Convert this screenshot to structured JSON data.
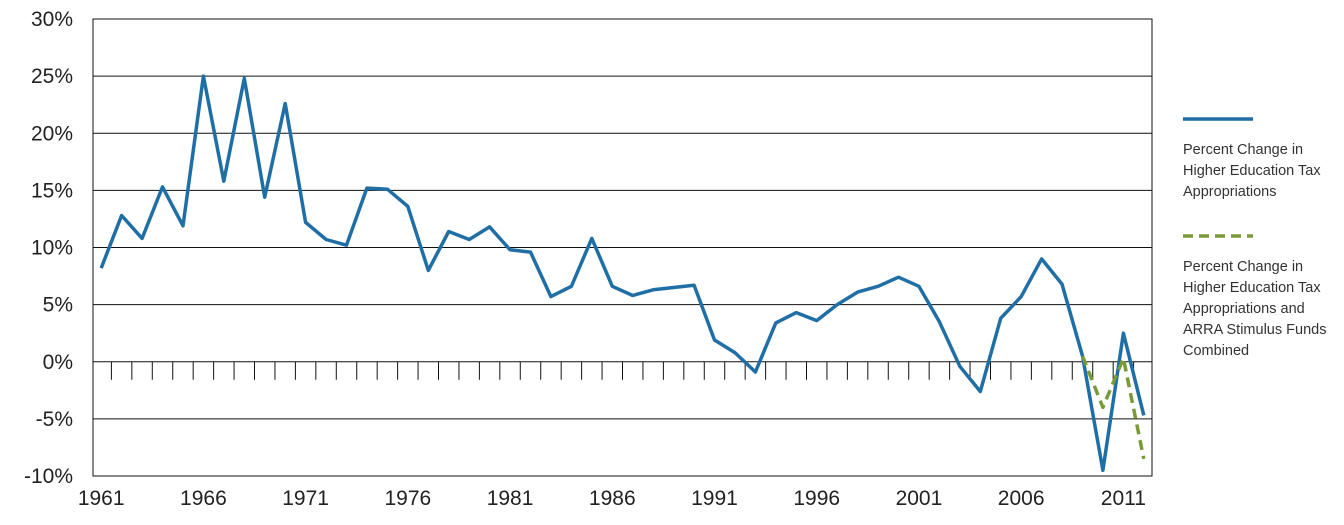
{
  "chart_data": {
    "type": "line",
    "x": [
      1961,
      1962,
      1963,
      1964,
      1965,
      1966,
      1967,
      1968,
      1969,
      1970,
      1971,
      1972,
      1973,
      1974,
      1975,
      1976,
      1977,
      1978,
      1979,
      1980,
      1981,
      1982,
      1983,
      1984,
      1985,
      1986,
      1987,
      1988,
      1989,
      1990,
      1991,
      1992,
      1993,
      1994,
      1995,
      1996,
      1997,
      1998,
      1999,
      2000,
      2001,
      2002,
      2003,
      2004,
      2005,
      2006,
      2007,
      2008,
      2009,
      2010,
      2011,
      2012
    ],
    "series": [
      {
        "name": "Percent Change in Higher Education Tax Appropriations",
        "color": "#1f6fa6",
        "dash": false,
        "values": [
          8.2,
          12.8,
          10.8,
          15.3,
          11.9,
          25.0,
          15.8,
          24.8,
          14.4,
          22.6,
          12.2,
          10.7,
          10.2,
          15.2,
          15.1,
          13.6,
          8.0,
          11.4,
          10.7,
          11.8,
          9.8,
          9.6,
          5.7,
          6.6,
          10.8,
          6.6,
          5.8,
          6.3,
          6.5,
          6.7,
          1.9,
          0.8,
          -0.9,
          3.4,
          4.3,
          3.6,
          5.0,
          6.1,
          6.6,
          7.4,
          6.6,
          3.5,
          -0.4,
          -2.6,
          3.8,
          5.7,
          9.0,
          6.8,
          0.5,
          -9.5,
          2.5,
          -4.7
        ]
      },
      {
        "name": "Percent Change in Higher Education Tax Appropriations and ARRA Stimulus Funds Combined",
        "color": "#7a9a3a",
        "dash": true,
        "values": [
          null,
          null,
          null,
          null,
          null,
          null,
          null,
          null,
          null,
          null,
          null,
          null,
          null,
          null,
          null,
          null,
          null,
          null,
          null,
          null,
          null,
          null,
          null,
          null,
          null,
          null,
          null,
          null,
          null,
          null,
          null,
          null,
          null,
          null,
          null,
          null,
          null,
          null,
          null,
          null,
          null,
          null,
          null,
          null,
          null,
          null,
          null,
          null,
          0.5,
          -4.0,
          0.3,
          -8.5
        ]
      }
    ],
    "xlim": [
      1960.6,
      2012.4
    ],
    "xticks": [
      1961,
      1966,
      1971,
      1976,
      1981,
      1986,
      1991,
      1996,
      2001,
      2006,
      2011
    ],
    "ylim": [
      -10,
      30
    ],
    "yticks": [
      {
        "value": -10,
        "label": "-10%"
      },
      {
        "value": -5,
        "label": "-5%"
      },
      {
        "value": 0,
        "label": "0%"
      },
      {
        "value": 5,
        "label": "5%"
      },
      {
        "value": 10,
        "label": "10%"
      },
      {
        "value": 15,
        "label": "15%"
      },
      {
        "value": 20,
        "label": "20%"
      },
      {
        "value": 25,
        "label": "25%"
      },
      {
        "value": 30,
        "label": "30%"
      }
    ],
    "grid": true
  }
}
